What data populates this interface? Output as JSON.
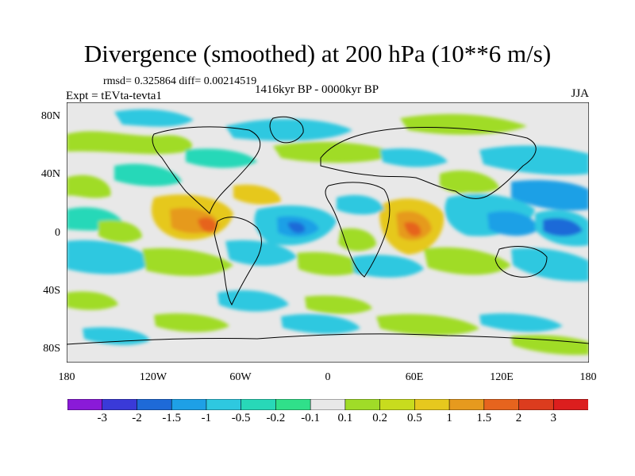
{
  "title": "Divergence (smoothed) at 200 hPa (10**6 m/s)",
  "stats": "rmsd= 0.325864 diff= 0.00214519",
  "expt": "Expt = tEVta-tevta1",
  "period": "1416kyr BP - 0000kyr BP",
  "season": "JJA",
  "lat_labels": [
    "80N",
    "40N",
    "0",
    "40S",
    "80S"
  ],
  "lon_labels": [
    "180",
    "120W",
    "60W",
    "0",
    "60E",
    "120E",
    "180"
  ],
  "colorbar": {
    "labels": [
      "-3",
      "-2",
      "-1.5",
      "-1",
      "-0.5",
      "-0.2",
      "-0.1",
      "0.1",
      "0.2",
      "0.5",
      "1",
      "1.5",
      "2",
      "3"
    ],
    "colors": [
      "#8a1ad8",
      "#3a3ad8",
      "#1e6ad8",
      "#1ea0e6",
      "#2ec8e0",
      "#28d8b8",
      "#30e08a",
      "#e8e8e8",
      "#a0dc28",
      "#c8dc1e",
      "#e6c81e",
      "#e69a1e",
      "#e6641e",
      "#dc3c1e",
      "#dc1e1e"
    ]
  }
}
